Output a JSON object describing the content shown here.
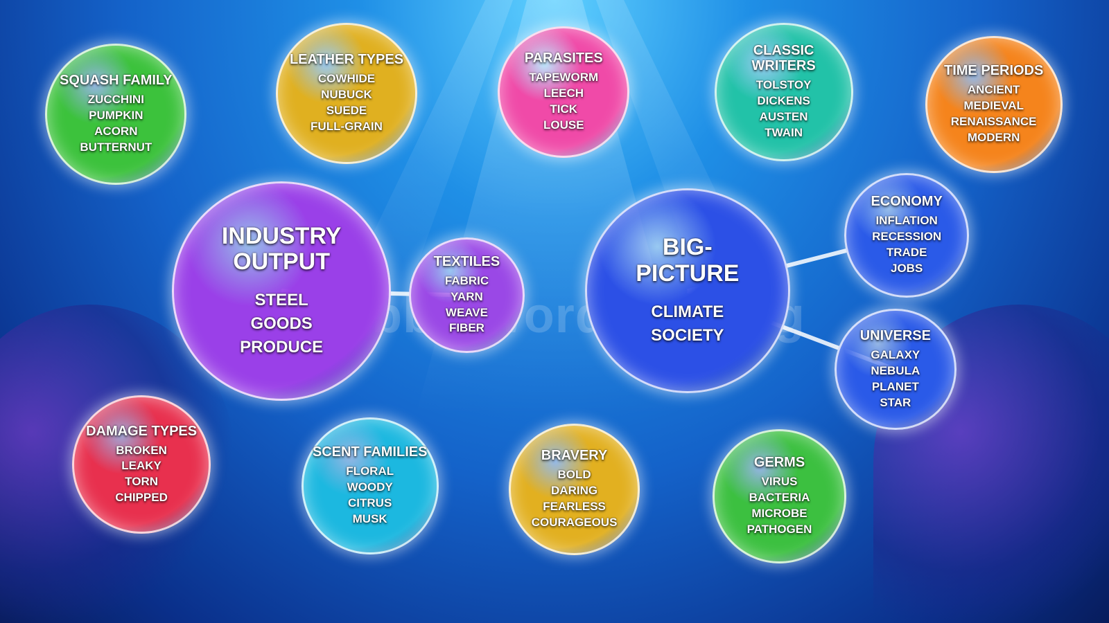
{
  "watermark": "BubbleWordJam.org",
  "bubbles": [
    {
      "title": "SQUASH FAMILY",
      "words": [
        "ZUCCHINI",
        "PUMPKIN",
        "ACORN",
        "BUTTERNUT"
      ]
    },
    {
      "title": "LEATHER TYPES",
      "words": [
        "COWHIDE",
        "NUBUCK",
        "SUEDE",
        "FULL-GRAIN"
      ]
    },
    {
      "title": "PARASITES",
      "words": [
        "TAPEWORM",
        "LEECH",
        "TICK",
        "LOUSE"
      ]
    },
    {
      "title": "CLASSIC WRITERS",
      "words": [
        "TOLSTOY",
        "DICKENS",
        "AUSTEN",
        "TWAIN"
      ]
    },
    {
      "title": "TIME PERIODS",
      "words": [
        "ANCIENT",
        "MEDIEVAL",
        "RENAISSANCE",
        "MODERN"
      ]
    },
    {
      "title": "INDUSTRY OUTPUT",
      "words": [
        "STEEL",
        "GOODS",
        "PRODUCE"
      ]
    },
    {
      "title": "TEXTILES",
      "words": [
        "FABRIC",
        "YARN",
        "WEAVE",
        "FIBER"
      ]
    },
    {
      "title": "BIG-PICTURE",
      "words": [
        "CLIMATE",
        "SOCIETY"
      ]
    },
    {
      "title": "ECONOMY",
      "words": [
        "INFLATION",
        "RECESSION",
        "TRADE",
        "JOBS"
      ]
    },
    {
      "title": "UNIVERSE",
      "words": [
        "GALAXY",
        "NEBULA",
        "PLANET",
        "STAR"
      ]
    },
    {
      "title": "DAMAGE TYPES",
      "words": [
        "BROKEN",
        "LEAKY",
        "TORN",
        "CHIPPED"
      ]
    },
    {
      "title": "SCENT FAMILIES",
      "words": [
        "FLORAL",
        "WOODY",
        "CITRUS",
        "MUSK"
      ]
    },
    {
      "title": "BRAVERY",
      "words": [
        "BOLD",
        "DARING",
        "FEARLESS",
        "COURAGEOUS"
      ]
    },
    {
      "title": "GERMS",
      "words": [
        "VIRUS",
        "BACTERIA",
        "MICROBE",
        "PATHOGEN"
      ]
    }
  ]
}
